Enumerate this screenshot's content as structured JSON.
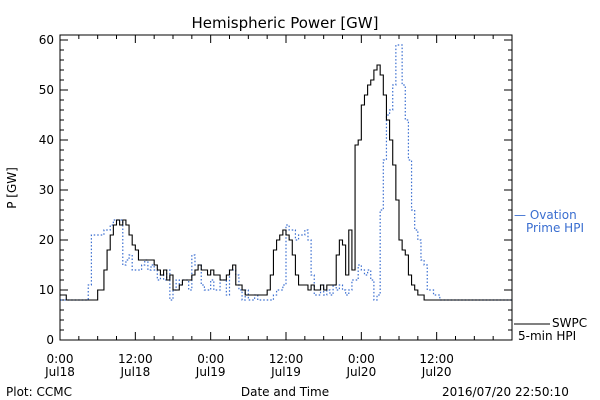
{
  "footer": {
    "credit": "Plot: CCMC",
    "timestamp": "2016/07/20 22:50:10"
  },
  "chart_data": {
    "type": "line",
    "title": "Hemispheric Power [GW]",
    "xlabel": "Date and Time",
    "ylabel": "P [GW]",
    "ylim": [
      0,
      61
    ],
    "xlim": [
      0,
      72
    ],
    "x_unit": "hours since 2016/07/18 00:00",
    "yticks": [
      0,
      10,
      20,
      30,
      40,
      50,
      60
    ],
    "xticks": [
      {
        "h": 0,
        "time": "0:00",
        "date": "Jul18"
      },
      {
        "h": 12,
        "time": "12:00",
        "date": "Jul18"
      },
      {
        "h": 24,
        "time": "0:00",
        "date": "Jul19"
      },
      {
        "h": 36,
        "time": "12:00",
        "date": "Jul19"
      },
      {
        "h": 48,
        "time": "0:00",
        "date": "Jul20"
      },
      {
        "h": 60,
        "time": "12:00",
        "date": "Jul20"
      }
    ],
    "grid": false,
    "legend": "right",
    "series": [
      {
        "name": "Ovation Prime HPI",
        "label_lines": [
          "— Ovation",
          "Prime HPI"
        ],
        "color": "#3a6ed0",
        "style": "dotted",
        "x": [
          -1,
          0,
          0.5,
          1,
          2,
          3,
          3.5,
          4.5,
          5,
          6,
          7,
          7.5,
          8,
          8.5,
          9,
          9.5,
          10,
          10.5,
          11,
          11.5,
          12,
          12.5,
          13,
          13.5,
          14,
          14.5,
          15,
          15.5,
          16,
          16.5,
          17,
          17.5,
          18,
          18.5,
          19,
          19.5,
          20,
          20.5,
          21,
          21.5,
          22,
          22.5,
          23,
          23.5,
          24,
          24.5,
          25,
          25.5,
          26,
          26.5,
          27,
          27.5,
          28,
          28.5,
          29,
          29.5,
          30,
          30.5,
          31,
          31.5,
          32,
          32.5,
          33,
          33.5,
          34,
          34.5,
          35,
          35.5,
          36,
          36.5,
          37,
          37.5,
          38,
          38.5,
          39,
          39.5,
          40,
          40.5,
          41,
          41.5,
          42,
          42.5,
          43,
          43.5,
          44,
          44.5,
          45,
          45.5,
          46,
          46.5,
          47,
          47.5,
          48,
          48.5,
          49,
          49.5,
          50,
          50.5,
          51,
          51.5,
          52,
          52.5,
          53,
          53.5,
          54,
          54.5,
          55,
          55.5,
          56,
          56.5,
          57,
          57.5,
          58,
          58.5,
          59,
          59.5,
          60,
          60.5,
          61,
          61.5,
          62,
          62.5,
          63,
          63.5,
          64,
          64.5,
          65,
          66,
          67,
          68,
          69,
          70,
          71,
          72
        ],
        "y": [
          8,
          8,
          8,
          8,
          8,
          8,
          8,
          11,
          21,
          21,
          22,
          22,
          23,
          24,
          24,
          24,
          15,
          16,
          17,
          14,
          14,
          14,
          15,
          16,
          14,
          15,
          14,
          12,
          13,
          12,
          14,
          8,
          10,
          12,
          11,
          12,
          12,
          10,
          17,
          15,
          15,
          11,
          10,
          10,
          12,
          10,
          10,
          12,
          12,
          9,
          14,
          14,
          13,
          10,
          8,
          10,
          8,
          8,
          9,
          8,
          8,
          8,
          8,
          8,
          9,
          10,
          10,
          11,
          23,
          22,
          22,
          20,
          21,
          21,
          22,
          20,
          13,
          9,
          9,
          11,
          9,
          10,
          9,
          11,
          10,
          11,
          10,
          9,
          10,
          12,
          12,
          15,
          14,
          13,
          14,
          12,
          8,
          9,
          26,
          36,
          45,
          46,
          51,
          59,
          59,
          51,
          44,
          36,
          26,
          22,
          20,
          16,
          15,
          10,
          10,
          9,
          9,
          8,
          8,
          8,
          8,
          8,
          8,
          8,
          8,
          8,
          8,
          8,
          8,
          8,
          8,
          8,
          8,
          8
        ]
      },
      {
        "name": "SWPC 5-min HPI",
        "label_lines": [
          "SWPC",
          "5-min HPI"
        ],
        "color": "#000000",
        "style": "solid",
        "x": [
          -1,
          0,
          0.5,
          1,
          2,
          3,
          4,
          5,
          6,
          7,
          7.5,
          8,
          8.5,
          9,
          9.5,
          10,
          10.5,
          11,
          11.5,
          12,
          12.5,
          13,
          13.5,
          14,
          14.5,
          15,
          15.5,
          16,
          16.5,
          17,
          17.5,
          18,
          18.5,
          19,
          19.5,
          20,
          20.5,
          21,
          21.5,
          22,
          22.5,
          23,
          23.5,
          24,
          24.5,
          25,
          25.5,
          26,
          26.5,
          27,
          27.5,
          28,
          28.5,
          29,
          29.5,
          30,
          30.5,
          31,
          31.5,
          32,
          32.5,
          33,
          33.5,
          34,
          34.5,
          35,
          35.5,
          36,
          36.5,
          37,
          37.5,
          38,
          38.5,
          39,
          39.5,
          40,
          40.5,
          41,
          41.5,
          42,
          42.5,
          43,
          43.5,
          44,
          44.5,
          45,
          45.5,
          46,
          46.5,
          47,
          47.5,
          48,
          48.5,
          49,
          49.5,
          50,
          50.5,
          51,
          51.5,
          52,
          52.5,
          53,
          53.5,
          54,
          54.5,
          55,
          55.5,
          56,
          56.5,
          57,
          57.5,
          58,
          58.5,
          59,
          59.5,
          60,
          60.5,
          61,
          61.5,
          62,
          62.5,
          63,
          63.5,
          64,
          64.5,
          65,
          66,
          67,
          68,
          69,
          70,
          71,
          72
        ],
        "y": [
          9,
          9,
          9,
          8,
          8,
          8,
          8,
          8,
          10,
          14,
          18,
          21,
          23,
          24,
          23,
          24,
          23,
          21,
          19,
          18,
          16,
          16,
          16,
          16,
          16,
          15,
          14,
          13,
          14,
          12,
          13,
          10,
          10,
          11,
          12,
          12,
          12,
          13,
          14,
          15,
          14,
          14,
          13,
          14,
          13,
          13,
          12,
          12,
          13,
          14,
          15,
          11,
          11,
          10,
          9,
          9,
          9,
          9,
          9,
          9,
          9,
          10,
          13,
          18,
          20,
          21,
          22,
          21,
          20,
          17,
          13,
          11,
          11,
          11,
          10,
          11,
          10,
          10,
          11,
          10,
          11,
          11,
          11,
          17,
          20,
          19,
          13,
          22,
          14,
          39,
          40,
          47,
          49,
          51,
          52,
          54,
          55,
          53,
          49,
          44,
          40,
          35,
          28,
          20,
          18,
          17,
          13,
          11,
          10,
          9,
          9,
          8,
          8,
          8,
          8,
          8,
          8,
          8,
          8,
          8,
          8,
          8,
          8,
          8,
          8,
          8,
          8,
          8,
          8,
          8,
          8,
          8,
          8
        ]
      }
    ]
  }
}
